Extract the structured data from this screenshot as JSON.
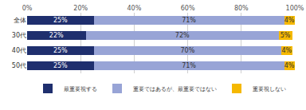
{
  "chart_data": {
    "type": "bar",
    "orientation": "horizontal",
    "stacked": true,
    "data_labels": true,
    "grid": true,
    "legend": "bottom",
    "categories": [
      "全体",
      "30代",
      "40代",
      "50代"
    ],
    "xlim": [
      0,
      100
    ],
    "xticks": [
      {
        "value": 0,
        "label": "0%"
      },
      {
        "value": 20,
        "label": "20%"
      },
      {
        "value": 40,
        "label": "40%"
      },
      {
        "value": 60,
        "label": "60%"
      },
      {
        "value": 80,
        "label": "80%"
      },
      {
        "value": 100,
        "label": "100%"
      }
    ],
    "series": [
      {
        "name": "最重要視する",
        "color": "#1f2f6e",
        "values": [
          25,
          22,
          25,
          25
        ],
        "value_labels": [
          "25%",
          "22%",
          "25%",
          "25%"
        ]
      },
      {
        "name": "重要ではあるが、最重要ではない",
        "color": "#98a4d6",
        "values": [
          71,
          72,
          70,
          71
        ],
        "value_labels": [
          "71%",
          "72%",
          "70%",
          "71%"
        ]
      },
      {
        "name": "重要視しない",
        "color": "#f5b800",
        "values": [
          4,
          5,
          4,
          4
        ],
        "value_labels": [
          "4%",
          "5%",
          "4%",
          "4%"
        ]
      }
    ]
  }
}
